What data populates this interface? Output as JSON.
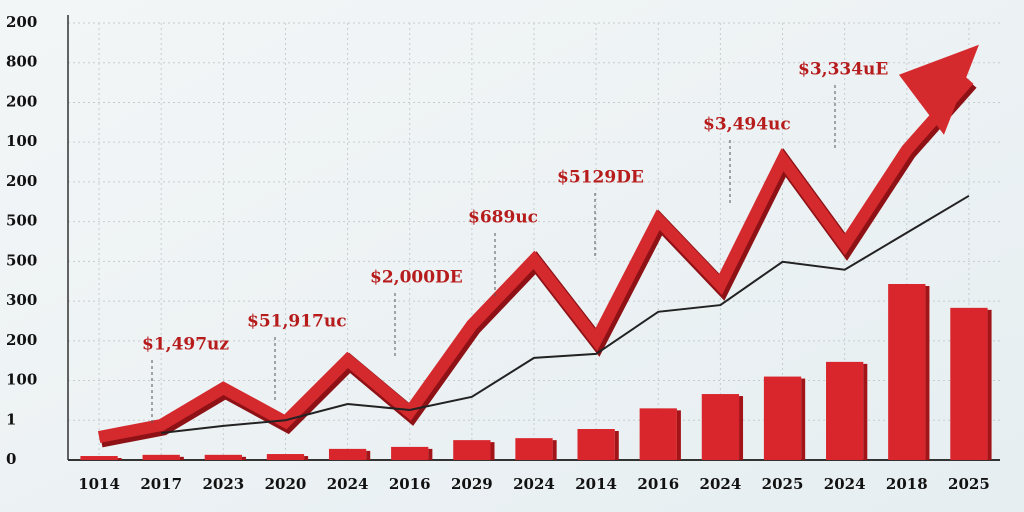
{
  "chart_data": {
    "type": "bar",
    "categories": [
      "1014",
      "2017",
      "2023",
      "2020",
      "2024",
      "2016",
      "2029",
      "2024",
      "2014",
      "2016",
      "2024",
      "2025",
      "2024",
      "2018",
      "2025"
    ],
    "values": [
      0.1,
      0.13,
      0.13,
      0.15,
      0.28,
      0.33,
      0.5,
      0.55,
      0.78,
      1.3,
      1.66,
      2.1,
      2.47,
      4.43,
      3.83
    ],
    "color": "#d8262c",
    "lines": [
      {
        "color": "#d42a2e",
        "values": [
          0.58,
          0.88,
          1.81,
          0.96,
          2.52,
          1.21,
          3.4,
          5.04,
          3.02,
          6.05,
          4.41,
          7.56,
          5.42,
          7.81,
          9.57
        ]
      },
      {
        "color": "#222222",
        "values": [
          null,
          0.68,
          0.86,
          1.0,
          1.41,
          1.26,
          1.59,
          2.57,
          2.67,
          3.73,
          3.9,
          4.99,
          4.79,
          5.72,
          6.65
        ]
      }
    ],
    "annotations": [
      "$1,497uz",
      "$51,917uc",
      "$2,000DE",
      "$689uc",
      "$5129DE",
      "$3,494uc",
      "$3,334uE"
    ],
    "ylim": [
      0,
      11
    ],
    "yticks": [
      0,
      1,
      {
        "value": 2,
        "label": "100"
      },
      {
        "value": 3,
        "label": "200"
      },
      {
        "value": 4,
        "label": "300"
      },
      {
        "value": 5,
        "label": "500"
      },
      {
        "value": 6,
        "label": "500"
      },
      {
        "value": 7,
        "label": "200"
      },
      {
        "value": 8,
        "label": "100"
      },
      {
        "value": 9,
        "label": "200"
      },
      {
        "value": 10,
        "label": "800"
      },
      {
        "value": 11,
        "label": "200"
      }
    ],
    "grid": true
  }
}
